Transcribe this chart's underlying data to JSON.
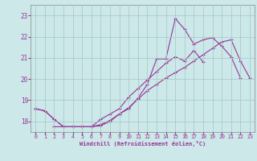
{
  "xlabel": "Windchill (Refroidissement éolien,°C)",
  "xlim": [
    -0.5,
    23.5
  ],
  "ylim": [
    17.5,
    23.5
  ],
  "yticks": [
    18,
    19,
    20,
    21,
    22,
    23
  ],
  "xticks": [
    0,
    1,
    2,
    3,
    4,
    5,
    6,
    7,
    8,
    9,
    10,
    11,
    12,
    13,
    14,
    15,
    16,
    17,
    18,
    19,
    20,
    21,
    22,
    23
  ],
  "background_color": "#cce8e8",
  "grid_color": "#aacccc",
  "line_color": "#993399",
  "line1_x": [
    0,
    1,
    2,
    3,
    4,
    5,
    6,
    7,
    8,
    9,
    10,
    11,
    12,
    13,
    14,
    15,
    16,
    17,
    18,
    19,
    20,
    21,
    22
  ],
  "line1_y": [
    18.6,
    18.5,
    18.1,
    17.75,
    17.75,
    17.75,
    17.75,
    17.8,
    18.0,
    18.35,
    18.6,
    19.1,
    19.75,
    20.95,
    20.95,
    22.85,
    22.35,
    21.65,
    21.85,
    21.95,
    21.55,
    21.05,
    20.05
  ],
  "line2_x": [
    0,
    1,
    2,
    3,
    4,
    5,
    6,
    7,
    8,
    9,
    10,
    11,
    12,
    13,
    14,
    15,
    16,
    17,
    18
  ],
  "line2_y": [
    18.6,
    18.5,
    18.1,
    17.75,
    17.75,
    17.75,
    17.75,
    18.1,
    18.35,
    18.6,
    19.15,
    19.55,
    19.95,
    20.35,
    20.75,
    21.05,
    20.85,
    21.35,
    20.8
  ],
  "line3_x": [
    2,
    3,
    4,
    5,
    6,
    7,
    8,
    9,
    10,
    11,
    12,
    13,
    14,
    15,
    16,
    17,
    18,
    19,
    20,
    21,
    22,
    23
  ],
  "line3_y": [
    17.75,
    17.75,
    17.75,
    17.75,
    17.75,
    17.85,
    18.05,
    18.35,
    18.65,
    19.05,
    19.45,
    19.75,
    20.05,
    20.3,
    20.55,
    20.85,
    21.15,
    21.45,
    21.75,
    21.85,
    20.85,
    20.05
  ]
}
